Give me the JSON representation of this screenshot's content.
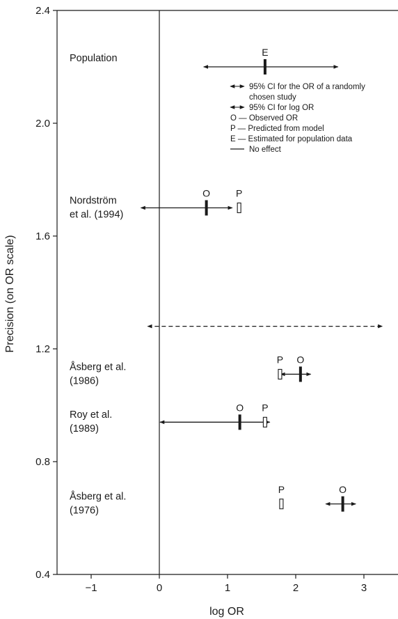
{
  "chart_data": {
    "type": "scatter",
    "title": "",
    "xlabel": "log OR",
    "ylabel": "Precision (on OR scale)",
    "xlim": [
      -1.5,
      3.5
    ],
    "ylim": [
      0.4,
      2.4
    ],
    "xticks": [
      -1,
      0,
      1,
      2,
      3
    ],
    "xtick_labels": [
      "−1",
      "0",
      "1",
      "2",
      "3"
    ],
    "yticks": [
      0.4,
      0.8,
      1.2,
      1.6,
      2.0,
      2.4
    ],
    "ytick_labels": [
      "0.4",
      "0.8",
      "1.2",
      "1.6",
      "2.0",
      "2.4"
    ],
    "grid": false,
    "no_effect_line_x": 0,
    "studies": [
      {
        "label_lines": [
          "Population"
        ],
        "label_y": 2.22,
        "y": 2.2,
        "estimated": 1.55,
        "ci_log_or": [
          0.65,
          2.62
        ],
        "letter_estimated": "E"
      },
      {
        "label_lines": [
          "Nordström",
          "et al. (1994)"
        ],
        "label_y": 1.715,
        "y": 1.7,
        "observed": 0.69,
        "predicted": 1.17,
        "ci_log_or": [
          -0.27,
          1.07
        ],
        "letter_observed": "O",
        "letter_predicted": "P"
      },
      {
        "label_lines": [
          "Åsberg et al.",
          "(1986)"
        ],
        "label_y": 1.125,
        "y": 1.11,
        "observed": 2.07,
        "predicted": 1.77,
        "ci_log_or": [
          1.78,
          2.22
        ],
        "letter_observed": "O",
        "letter_predicted": "P"
      },
      {
        "label_lines": [
          "Roy et al.",
          "(1989)"
        ],
        "label_y": 0.955,
        "y": 0.94,
        "observed": 1.18,
        "predicted": 1.55,
        "ci_log_or": [
          0.01,
          1.62
        ],
        "letter_observed": "O",
        "letter_predicted": "P"
      },
      {
        "label_lines": [
          "Åsberg et al.",
          "(1976)"
        ],
        "label_y": 0.665,
        "y": 0.65,
        "observed": 2.69,
        "predicted": 1.79,
        "ci_log_or": [
          2.44,
          2.88
        ],
        "letter_observed": "O",
        "letter_predicted": "P"
      }
    ],
    "random_study_ci": {
      "y": 1.28,
      "range": [
        -0.17,
        3.27
      ]
    },
    "legend": {
      "placement": "top-right",
      "entries": [
        {
          "symbol": "dashed-arrow",
          "lines": [
            "95% CI for the OR of a randomly",
            "chosen study"
          ]
        },
        {
          "symbol": "solid-arrow",
          "lines": [
            "95% CI for log OR"
          ]
        },
        {
          "symbol": "none",
          "lines": [
            "O — Observed OR"
          ]
        },
        {
          "symbol": "none",
          "lines": [
            "P — Predicted from model"
          ]
        },
        {
          "symbol": "none",
          "lines": [
            "E — Estimated for population data"
          ]
        },
        {
          "symbol": "line",
          "lines": [
            "No effect"
          ]
        }
      ]
    }
  }
}
